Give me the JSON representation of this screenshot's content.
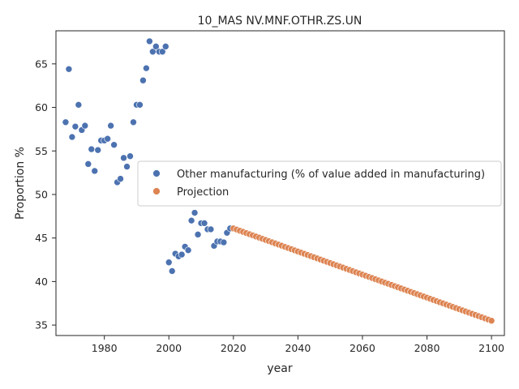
{
  "chart_data": {
    "type": "scatter",
    "title": "10_MAS NV.MNF.OTHR.ZS.UN",
    "xlabel": "year",
    "ylabel": "Proportion %",
    "xlim": [
      1965,
      2104
    ],
    "ylim": [
      33.8,
      68.8
    ],
    "xticks": [
      1980,
      2000,
      2020,
      2040,
      2060,
      2080,
      2100
    ],
    "yticks": [
      35,
      40,
      45,
      50,
      55,
      60,
      65
    ],
    "grid": false,
    "legend_position": "center-right",
    "series": [
      {
        "name": "Other manufacturing (% of value added in manufacturing)",
        "color": "#4c72b0",
        "x": [
          1968,
          1969,
          1970,
          1971,
          1972,
          1973,
          1974,
          1975,
          1976,
          1977,
          1978,
          1979,
          1980,
          1981,
          1982,
          1983,
          1984,
          1985,
          1986,
          1987,
          1988,
          1989,
          1990,
          1991,
          1992,
          1993,
          1994,
          1995,
          1996,
          1997,
          1998,
          1999,
          2000,
          2001,
          2002,
          2003,
          2004,
          2005,
          2006,
          2007,
          2008,
          2009,
          2010,
          2011,
          2012,
          2013,
          2014,
          2015,
          2016,
          2017,
          2018,
          2019
        ],
        "y": [
          58.3,
          64.4,
          56.6,
          57.8,
          60.3,
          57.4,
          57.9,
          53.5,
          55.2,
          52.7,
          55.1,
          56.2,
          56.2,
          56.4,
          57.9,
          55.7,
          51.4,
          51.8,
          54.2,
          53.2,
          54.4,
          58.3,
          60.3,
          60.3,
          63.1,
          64.5,
          67.6,
          66.4,
          67.0,
          66.4,
          66.4,
          67.0,
          42.2,
          41.2,
          43.2,
          42.9,
          43.1,
          44.0,
          43.6,
          47.0,
          47.9,
          45.4,
          46.7,
          46.7,
          46.0,
          46.0,
          44.1,
          44.6,
          44.6,
          44.5,
          45.6,
          46.1
        ]
      },
      {
        "name": "Projection",
        "color": "#dd8452",
        "x_start": 2020,
        "x_end": 2100,
        "y_start": 46.1,
        "y_end": 35.5
      }
    ]
  }
}
